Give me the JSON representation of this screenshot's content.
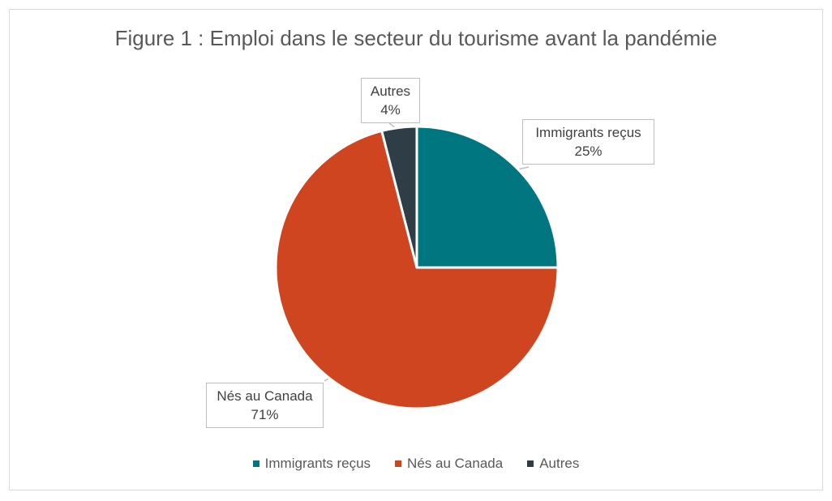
{
  "chart_data": {
    "type": "pie",
    "title": "Figure 1 : Emploi dans le secteur du tourisme avant la pandémie",
    "categories": [
      "Immigrants reçus",
      "Nés au Canada",
      "Autres"
    ],
    "values": [
      25,
      71,
      4
    ],
    "value_labels": [
      "25%",
      "71%",
      "4%"
    ],
    "colors": [
      "#007780",
      "#cf4520",
      "#2f3e46"
    ],
    "legend": "bottom",
    "start": "top",
    "direction": "clockwise"
  }
}
